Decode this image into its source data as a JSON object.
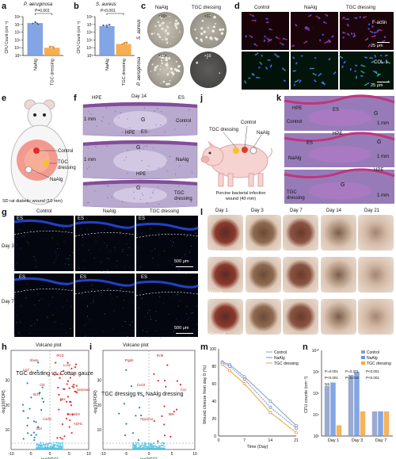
{
  "panels": {
    "a": "a",
    "b": "b",
    "c": "c",
    "d": "d",
    "e": "e",
    "f": "f",
    "g": "g",
    "h": "h",
    "i": "i",
    "j": "j",
    "k": "k",
    "l": "l",
    "m": "m",
    "n": "n"
  },
  "panel_a": {
    "title": "P. aeruginosa",
    "p": "P=0.001",
    "ylabel": "CFU Count (cm⁻²)",
    "yticks": [
      "10⁸",
      "10⁷",
      "10⁶",
      "10⁵",
      "10⁴",
      "10³"
    ]
  },
  "panel_b": {
    "title": "S. aureus",
    "p": "P<0.001",
    "ylabel": "CFU Count (cm⁻²)",
    "yticks": [
      "10⁸",
      "10⁷",
      "10⁶",
      "10⁵",
      "10⁴",
      "10³"
    ]
  },
  "panel_c": {
    "col_nalg": "NaAlg",
    "col_tgc": "TGC dressing",
    "row_sa": "S. aureus",
    "row_pa": "P. aeruginosa",
    "dil_sa_nalg": "×10⁴",
    "dil_sa_tgc": "×10",
    "dil_pa_nalg": "×10⁴",
    "dil_pa_tgc": "×10"
  },
  "panel_d": {
    "col1": "Control",
    "col2": "NaAlg",
    "col3": "TGC dressing",
    "row1": "F-actin",
    "row2": "COL-1",
    "scale1": "25 μm",
    "scale2": "25 μm"
  },
  "panel_e": {
    "control": "Control",
    "tgc": "TGC dressing",
    "nalg": "NaAlg",
    "caption": "SD rat diabetic wound (10 mm)"
  },
  "panel_f": {
    "title": "Day 14",
    "hpe": "HPE",
    "es": "ES",
    "g": "G",
    "s1": "1 mm",
    "s2": "1 mm",
    "control": "Control",
    "nalg": "NaAlg",
    "tgc": "TGC dressing"
  },
  "panel_g": {
    "col1": "Control",
    "col2": "NaAlg",
    "col3": "TGC dressing",
    "day3": "Day 3",
    "day7": "Day 7",
    "es": "ES",
    "s1": "500 μm",
    "s2": "500 μm"
  },
  "panel_h": {
    "title": "Volcano plot",
    "subtitle": "TGC dressing vs. Cotton gauze",
    "xlabel": "log2(FC)",
    "ylabel": "-log10(FDR)",
    "genes": [
      "RGD",
      "Ctk",
      "Serpinb2",
      "Sbeta",
      "Serpina1",
      "Cxcl5",
      "Lcn2",
      "Il1rl1",
      "ADH1",
      "Lcnf",
      "Nts",
      "Stbr",
      "Ppl"
    ]
  },
  "panel_i": {
    "title": "Volcano plot",
    "subtitle": "TGC dressing vs. NaAlg dressing",
    "xlabel": "log2(FC)",
    "ylabel": "-log10(FDR)",
    "genes": [
      "Rcl9",
      "Cxcl4",
      "Mt5",
      "Ptgds",
      "Ccn",
      "Ppp1r1a"
    ]
  },
  "panel_j": {
    "tgc": "TGC dressing",
    "control": "Control",
    "nalg": "NaAlg",
    "caption": "Porcine bacterial infection wound (40 mm)"
  },
  "panel_k": {
    "hpe": "HPE",
    "es": "ES",
    "g": "G",
    "control": "Control",
    "nalg": "NaAlg",
    "tgc": "TGC dressing",
    "s1": "1 mm",
    "s2": "1 mm",
    "s3": "1 mm"
  },
  "panel_l": {
    "days": [
      "Day 1",
      "Day 3",
      "Day 7",
      "Day 14",
      "Day 21"
    ],
    "rows": [
      "TGC dressing",
      "NaAlg",
      "Control"
    ]
  },
  "colors": {
    "nalg_bar": "#6d95df",
    "tgc_bar": "#f4a640",
    "control": "#8a9cc4",
    "tgc_line": "#e8a53a",
    "up": "#e03030",
    "down": "#2a7fc0",
    "ns": "#5bc8e8",
    "tissue": "#b25a9c",
    "dapi": "#2548d8"
  },
  "chart_data": [
    {
      "panel": "a",
      "type": "bar",
      "title": "P. aeruginosa",
      "ylabel": "CFU Count (cm⁻²)",
      "yscale": "log",
      "ylim": [
        1000,
        100000000
      ],
      "categories": [
        "NaAlg",
        "TGC dressing"
      ],
      "values": [
        15000000,
        10000
      ],
      "annotation": "P=0.001"
    },
    {
      "panel": "b",
      "type": "bar",
      "title": "S. aureus",
      "ylabel": "CFU Count (cm⁻²)",
      "yscale": "log",
      "ylim": [
        1000,
        100000000
      ],
      "categories": [
        "NaAlg",
        "TGC dressing"
      ],
      "values": [
        6000000,
        30000
      ],
      "annotation": "P<0.001"
    },
    {
      "panel": "m",
      "type": "line",
      "xlabel": "Time (Day)",
      "ylabel": "Wound closure from day 0 (%)",
      "xlim": [
        0,
        21
      ],
      "ylim": [
        0,
        100
      ],
      "x": [
        1,
        3,
        7,
        14,
        21
      ],
      "legend": "top-right",
      "series": [
        {
          "name": "Control",
          "values": [
            85,
            82,
            68,
            40,
            12
          ]
        },
        {
          "name": "NaAlg",
          "values": [
            84,
            80,
            65,
            33,
            9
          ]
        },
        {
          "name": "TGC dressing",
          "values": [
            82,
            75,
            60,
            27,
            4
          ]
        }
      ]
    },
    {
      "panel": "n",
      "type": "bar",
      "ylabel": "CFU counts (cm⁻²)",
      "yscale": "log",
      "ylim": [
        100,
        10000000000
      ],
      "legend": "top-right",
      "categories": [
        "Day 1",
        "Day 3",
        "Day 7"
      ],
      "series": [
        {
          "name": "Control",
          "values": [
            5000000,
            50000000,
            20000
          ]
        },
        {
          "name": "NaAlg",
          "values": [
            10000000,
            100000000,
            20000
          ]
        },
        {
          "name": "TGC dressing",
          "values": [
            1000,
            20000,
            20000
          ]
        }
      ],
      "annotations": [
        "P=0.001",
        "P=0.371",
        "P<0.001",
        "P<0.001",
        "P=0.018",
        "P<0.001",
        "NS"
      ]
    }
  ]
}
